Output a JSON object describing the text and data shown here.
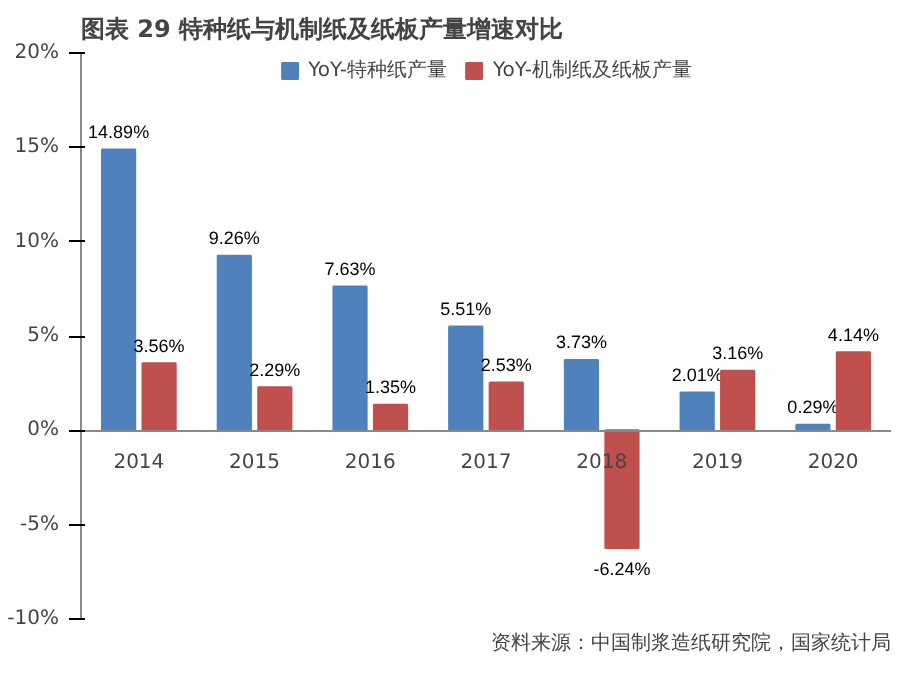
{
  "chart_data": {
    "type": "bar",
    "title": "图表 29  特种纸与机制纸及纸板产量增速对比",
    "categories": [
      "2014",
      "2015",
      "2016",
      "2017",
      "2018",
      "2019",
      "2020"
    ],
    "series": [
      {
        "name": "YoY-特种纸产量",
        "color": "#4f81bd",
        "values": [
          14.89,
          9.26,
          7.63,
          5.51,
          3.73,
          2.01,
          0.29
        ],
        "value_labels": [
          "14.89%",
          "9.26%",
          "7.63%",
          "5.51%",
          "3.73%",
          "2.01%",
          "0.29%"
        ]
      },
      {
        "name": "YoY-机制纸及纸板产量",
        "color": "#c0504d",
        "values": [
          3.56,
          2.29,
          1.35,
          2.53,
          -6.24,
          3.16,
          4.14
        ],
        "value_labels": [
          "3.56%",
          "2.29%",
          "1.35%",
          "2.53%",
          "-6.24%",
          "3.16%",
          "4.14%"
        ]
      }
    ],
    "ylim": [
      -10,
      20
    ],
    "yticks": [
      {
        "value": -10,
        "label": "-10%"
      },
      {
        "value": -5,
        "label": "-5%"
      },
      {
        "value": 0,
        "label": "0%"
      },
      {
        "value": 5,
        "label": "5%"
      },
      {
        "value": 10,
        "label": "10%"
      },
      {
        "value": 15,
        "label": "15%"
      },
      {
        "value": 20,
        "label": "20%"
      }
    ],
    "grid": false,
    "legend": "top",
    "annotations": [
      "资料来源：中国制浆造纸研究院，国家统计局"
    ]
  }
}
